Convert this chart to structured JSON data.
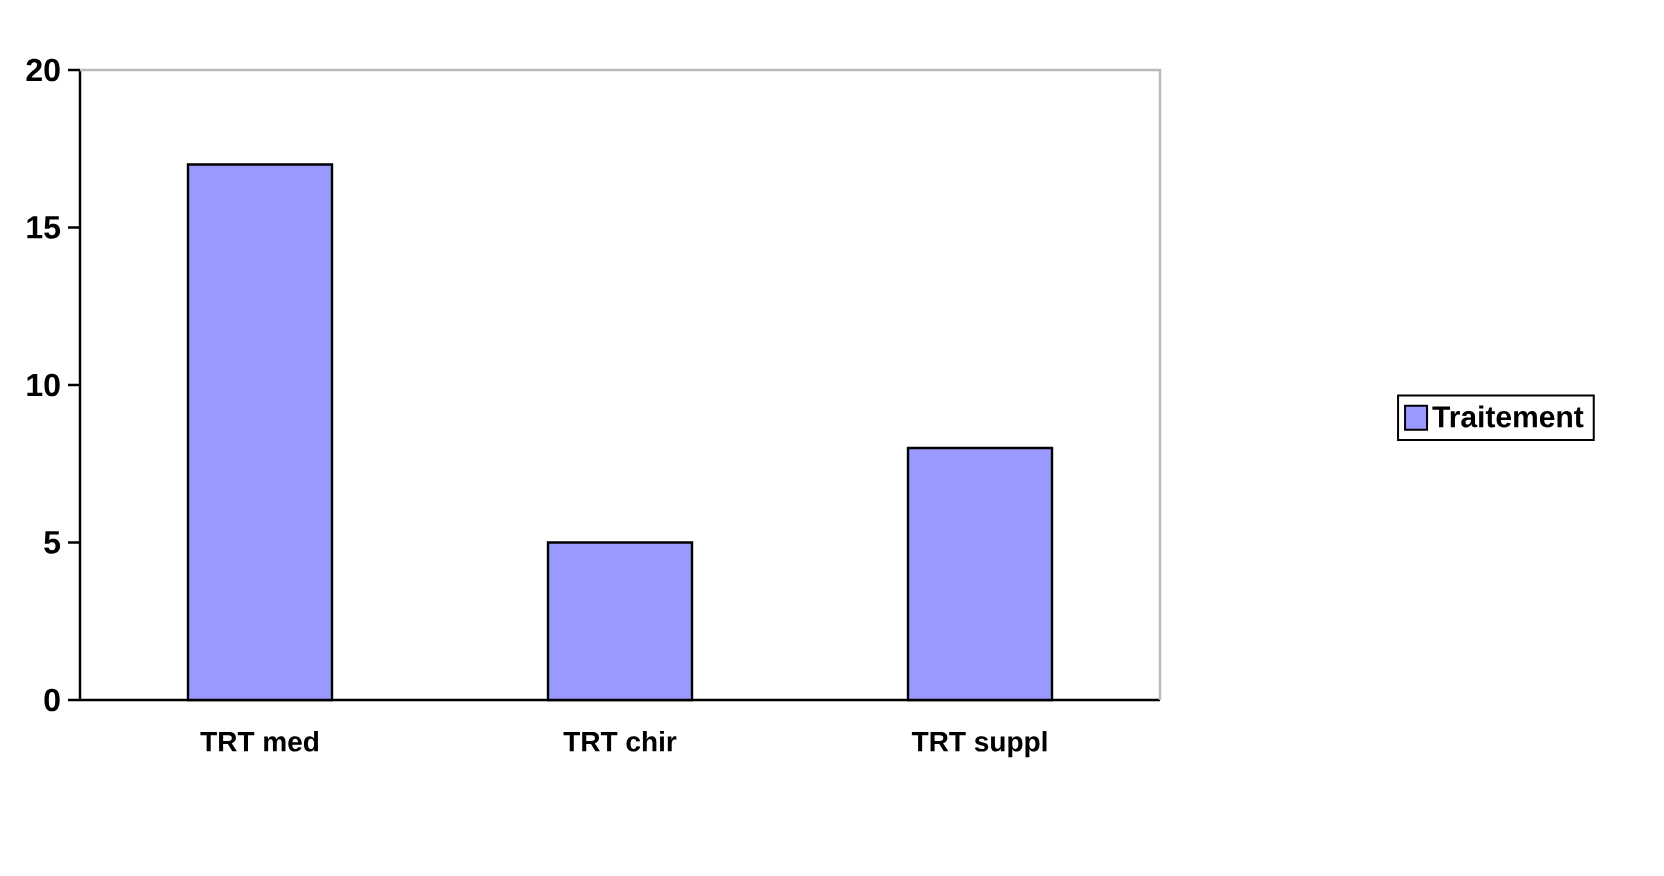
{
  "chart_data": {
    "type": "bar",
    "categories": [
      "TRT med",
      "TRT chir",
      "TRT suppl"
    ],
    "series": [
      {
        "name": "Traitement",
        "color": "#9999ff",
        "values": [
          17,
          5,
          8
        ]
      }
    ],
    "ylim": [
      0,
      20
    ],
    "yticks": [
      0,
      5,
      10,
      15,
      20
    ],
    "legend": "right"
  }
}
